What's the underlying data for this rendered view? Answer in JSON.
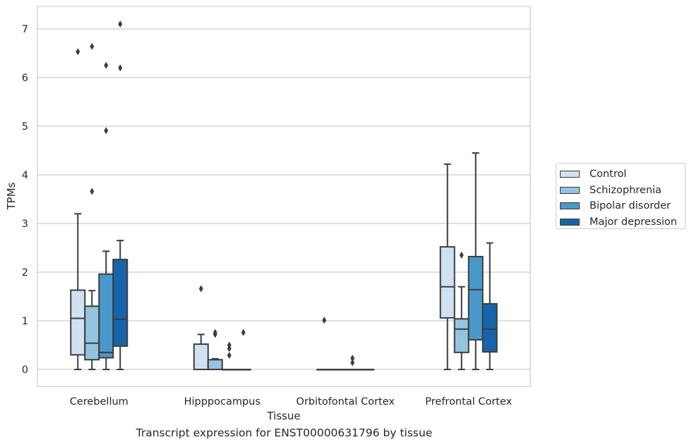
{
  "caption": "Transcript expression for ENST00000631796 by tissue",
  "chart_data": {
    "type": "boxplot",
    "xlabel": "Tissue",
    "ylabel": "TPMs",
    "ylim": [
      -0.35,
      7.45
    ],
    "yticks": [
      0,
      1,
      2,
      3,
      4,
      5,
      6,
      7
    ],
    "grid": true,
    "legend_position": "right",
    "categories": [
      "Cerebellum",
      "Hipppocampus",
      "Orbitofontal Cortex",
      "Prefrontal Cortex"
    ],
    "series": [
      {
        "name": "Control",
        "color": "#d0e1f2",
        "boxes": [
          {
            "whislo": 0,
            "q1": 0.3,
            "med": 1.05,
            "q3": 1.63,
            "whishi": 3.2,
            "fliers": [
              6.53
            ]
          },
          {
            "whislo": 0,
            "q1": 0,
            "med": 0,
            "q3": 0.52,
            "whishi": 0.72,
            "fliers": [
              1.66
            ]
          },
          {
            "whislo": 0,
            "q1": 0,
            "med": 0,
            "q3": 0,
            "whishi": 0,
            "fliers": [
              1.01
            ]
          },
          {
            "whislo": 0,
            "q1": 1.06,
            "med": 1.7,
            "q3": 2.52,
            "whishi": 4.22,
            "fliers": []
          }
        ]
      },
      {
        "name": "Schizophrenia",
        "color": "#94c4df",
        "boxes": [
          {
            "whislo": 0,
            "q1": 0.2,
            "med": 0.54,
            "q3": 1.3,
            "whishi": 1.62,
            "fliers": [
              3.66,
              6.64
            ]
          },
          {
            "whislo": 0,
            "q1": 0,
            "med": 0,
            "q3": 0.2,
            "whishi": 0.22,
            "fliers": [
              0.72,
              0.76
            ]
          },
          {
            "whislo": 0,
            "q1": 0,
            "med": 0,
            "q3": 0,
            "whishi": 0,
            "fliers": []
          },
          {
            "whislo": 0,
            "q1": 0.35,
            "med": 0.83,
            "q3": 1.04,
            "whishi": 1.7,
            "fliers": [
              2.35
            ]
          }
        ]
      },
      {
        "name": "Bipolar disorder",
        "color": "#4a98c9",
        "boxes": [
          {
            "whislo": 0,
            "q1": 0.24,
            "med": 0.35,
            "q3": 1.96,
            "whishi": 2.43,
            "fliers": [
              4.91,
              6.25
            ]
          },
          {
            "whislo": 0,
            "q1": 0,
            "med": 0,
            "q3": 0,
            "whishi": 0,
            "fliers": [
              0.29,
              0.43,
              0.5
            ]
          },
          {
            "whislo": 0,
            "q1": 0,
            "med": 0,
            "q3": 0,
            "whishi": 0,
            "fliers": [
              0.14,
              0.23
            ]
          },
          {
            "whislo": 0,
            "q1": 0.61,
            "med": 1.64,
            "q3": 2.32,
            "whishi": 4.45,
            "fliers": []
          }
        ]
      },
      {
        "name": "Major depression",
        "color": "#1764ab",
        "boxes": [
          {
            "whislo": 0,
            "q1": 0.48,
            "med": 1.03,
            "q3": 2.26,
            "whishi": 2.65,
            "fliers": [
              6.2,
              7.1
            ]
          },
          {
            "whislo": 0,
            "q1": 0,
            "med": 0,
            "q3": 0,
            "whishi": 0,
            "fliers": [
              0.76
            ]
          },
          {
            "whislo": 0,
            "q1": 0,
            "med": 0,
            "q3": 0,
            "whishi": 0,
            "fliers": []
          },
          {
            "whislo": 0,
            "q1": 0.36,
            "med": 0.83,
            "q3": 1.35,
            "whishi": 2.6,
            "fliers": []
          }
        ]
      }
    ]
  }
}
